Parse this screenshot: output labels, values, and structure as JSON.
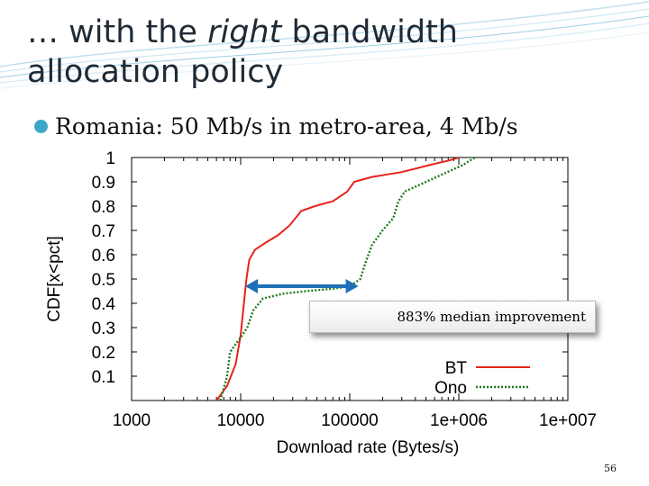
{
  "slide": {
    "title_prefix": "… with the ",
    "title_emphasis": "right",
    "title_suffix": " bandwidth allocation policy",
    "bullet": "Romania: 50 Mb/s in metro-area, 4 Mb/s",
    "annotation": "883%  median improvement",
    "page_number": "56",
    "colors": {
      "title": "#1f2a36",
      "bullet": "#3ea6c8",
      "arrow": "#1f6fb8"
    }
  },
  "chart_data": {
    "type": "line",
    "xlabel": "Download rate (Bytes/s)",
    "ylabel": "CDF[x<pct]",
    "x_scale": "log",
    "xlim": [
      1000,
      10000000
    ],
    "ylim": [
      0,
      1
    ],
    "x_ticks": [
      1000,
      10000,
      100000,
      1000000,
      10000000
    ],
    "x_tick_labels": [
      "1000",
      "10000",
      "100000",
      "1e+006",
      "1e+007"
    ],
    "y_ticks": [
      0.1,
      0.2,
      0.3,
      0.4,
      0.5,
      0.6,
      0.7,
      0.8,
      0.9,
      1
    ],
    "y_tick_labels": [
      "0.1",
      "0.2",
      "0.3",
      "0.4",
      "0.5",
      "0.6",
      "0.7",
      "0.8",
      "0.9",
      "1"
    ],
    "legend_position": "bottom-right",
    "series": [
      {
        "name": "BT",
        "color": "#e8231c",
        "dash": "solid",
        "points": [
          [
            6000,
            0
          ],
          [
            7500,
            0.06
          ],
          [
            9000,
            0.15
          ],
          [
            10000,
            0.27
          ],
          [
            10700,
            0.4
          ],
          [
            11300,
            0.5
          ],
          [
            12000,
            0.58
          ],
          [
            13500,
            0.62
          ],
          [
            17000,
            0.65
          ],
          [
            22000,
            0.68
          ],
          [
            28000,
            0.72
          ],
          [
            36000,
            0.78
          ],
          [
            48000,
            0.8
          ],
          [
            70000,
            0.82
          ],
          [
            95000,
            0.86
          ],
          [
            110000,
            0.9
          ],
          [
            160000,
            0.92
          ],
          [
            300000,
            0.94
          ],
          [
            550000,
            0.97
          ],
          [
            850000,
            0.99
          ],
          [
            1000000,
            1.0
          ]
        ]
      },
      {
        "name": "Ono",
        "color": "#1d7a1d",
        "dash": "dotted",
        "points": [
          [
            6500,
            0
          ],
          [
            7500,
            0.1
          ],
          [
            8000,
            0.2
          ],
          [
            10000,
            0.26
          ],
          [
            11500,
            0.3
          ],
          [
            13000,
            0.37
          ],
          [
            16000,
            0.42
          ],
          [
            25000,
            0.44
          ],
          [
            40000,
            0.45
          ],
          [
            70000,
            0.46
          ],
          [
            100000,
            0.47
          ],
          [
            125000,
            0.5
          ],
          [
            140000,
            0.57
          ],
          [
            160000,
            0.64
          ],
          [
            200000,
            0.7
          ],
          [
            250000,
            0.75
          ],
          [
            280000,
            0.82
          ],
          [
            320000,
            0.86
          ],
          [
            450000,
            0.89
          ],
          [
            700000,
            0.93
          ],
          [
            1100000,
            0.97
          ],
          [
            1400000,
            1.0
          ]
        ]
      }
    ]
  }
}
